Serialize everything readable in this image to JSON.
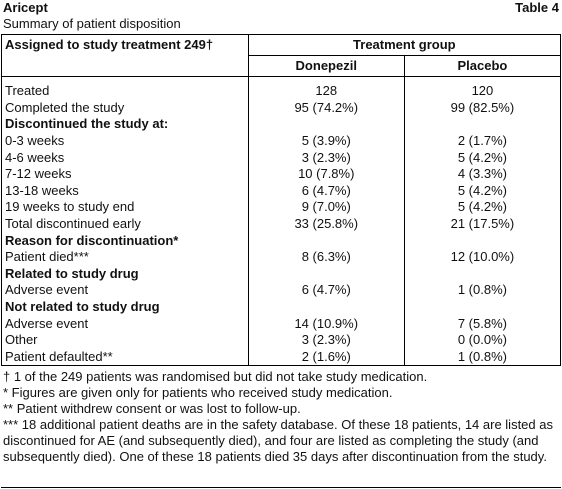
{
  "header": {
    "title": "Aricept",
    "table_label": "Table 4",
    "subtitle": "Summary of patient disposition"
  },
  "table": {
    "row_header": "Assigned to study treatment 249†",
    "group_header": "Treatment group",
    "columns": [
      "Donepezil",
      "Placebo"
    ],
    "rows": [
      {
        "label": "Treated",
        "values": [
          "128",
          "120"
        ]
      },
      {
        "label": "Completed the study",
        "values": [
          "95 (74.2%)",
          "99 (82.5%)"
        ]
      },
      {
        "heading": "Discontinued the study at:"
      },
      {
        "label": "0-3 weeks",
        "values": [
          "5 (3.9%)",
          "2 (1.7%)"
        ]
      },
      {
        "label": "4-6 weeks",
        "values": [
          "3 (2.3%)",
          "5 (4.2%)"
        ]
      },
      {
        "label": "7-12 weeks",
        "values": [
          "10 (7.8%)",
          "4 (3.3%)"
        ]
      },
      {
        "label": "13-18 weeks",
        "values": [
          "6 (4.7%)",
          "5 (4.2%)"
        ]
      },
      {
        "label": "19 weeks to study end",
        "values": [
          "9 (7.0%)",
          "5 (4.2%)"
        ]
      },
      {
        "label": "Total discontinued early",
        "values": [
          "33 (25.8%)",
          "21 (17.5%)"
        ]
      },
      {
        "heading": "Reason for discontinuation*"
      },
      {
        "label": "Patient died***",
        "values": [
          "8 (6.3%)",
          "12 (10.0%)"
        ]
      },
      {
        "heading": "Related to study drug"
      },
      {
        "label": "Adverse event",
        "values": [
          "6 (4.7%)",
          "1 (0.8%)"
        ]
      },
      {
        "heading": "Not related to study drug"
      },
      {
        "label": "Adverse event",
        "values": [
          "14 (10.9%)",
          "7 (5.8%)"
        ]
      },
      {
        "label": "Other",
        "values": [
          "3 (2.3%)",
          "0 (0.0%)"
        ]
      },
      {
        "label": "Patient defaulted**",
        "values": [
          "2 (1.6%)",
          "1 (0.8%)"
        ]
      }
    ]
  },
  "footnotes": [
    "† 1 of the 249 patients was randomised but did not take study medication.",
    "* Figures are given only for patients who received study medication.",
    "** Patient withdrew consent or was lost to follow-up.",
    "*** 18 additional patient deaths are in the safety database. Of these 18 patients, 14 are listed as discontinued for AE (and subsequently died), and four are listed as completing the study (and subsequently died). One of these 18 patients died 35 days after discontinuation from the study."
  ]
}
